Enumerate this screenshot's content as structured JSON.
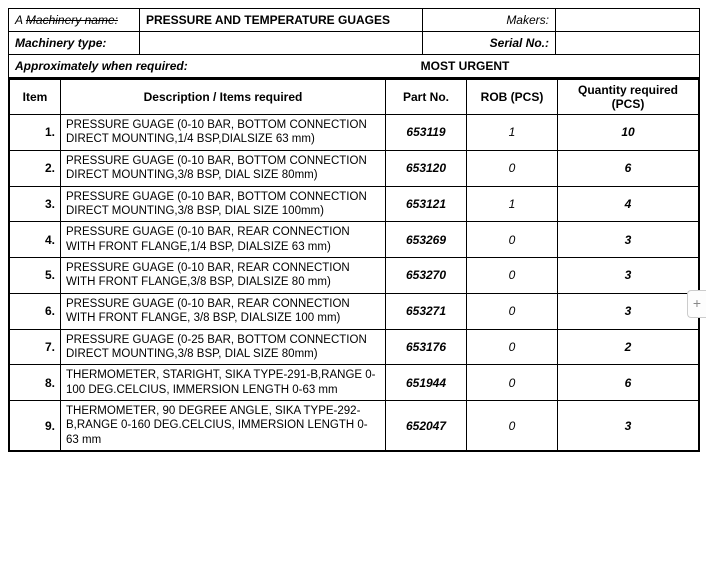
{
  "header": {
    "machinery_name_label_prefix": "A ",
    "machinery_name_label_struck": "Machinery name:",
    "machinery_name_value": "PRESSURE AND TEMPERATURE GUAGES",
    "makers_label": "Makers:",
    "makers_value": "",
    "machinery_type_label": "Machinery type:",
    "machinery_type_value": "",
    "serial_no_label": "Serial No.:",
    "serial_no_value": "",
    "approx_required_label": "Approximately when required:",
    "approx_required_value": "MOST URGENT"
  },
  "columns": {
    "item": "Item",
    "desc": "Description / Items required",
    "part": "Part No.",
    "rob": "ROB (PCS)",
    "qty": "Quantity required (PCS)"
  },
  "rows": [
    {
      "n": "1.",
      "desc": "PRESSURE GUAGE (0-10 BAR, BOTTOM CONNECTION DIRECT MOUNTING,1/4 BSP,DIALSIZE 63 mm)",
      "part": "653119",
      "rob": "1",
      "qty": "10"
    },
    {
      "n": "2.",
      "desc": "PRESSURE GUAGE (0-10 BAR, BOTTOM CONNECTION DIRECT MOUNTING,3/8 BSP, DIAL SIZE 80mm)",
      "part": "653120",
      "rob": "0",
      "qty": "6"
    },
    {
      "n": "3.",
      "desc": "PRESSURE GUAGE (0-10 BAR, BOTTOM CONNECTION DIRECT MOUNTING,3/8 BSP, DIAL SIZE 100mm)",
      "part": "653121",
      "rob": "1",
      "qty": "4"
    },
    {
      "n": "4.",
      "desc": "PRESSURE GUAGE (0-10 BAR, REAR CONNECTION WITH FRONT FLANGE,1/4 BSP, DIALSIZE 63 mm)",
      "part": "653269",
      "rob": "0",
      "qty": "3"
    },
    {
      "n": "5.",
      "desc": "PRESSURE GUAGE (0-10 BAR, REAR CONNECTION WITH FRONT FLANGE,3/8 BSP, DIALSIZE 80 mm)",
      "part": "653270",
      "rob": "0",
      "qty": "3"
    },
    {
      "n": "6.",
      "desc": "PRESSURE GUAGE (0-10 BAR, REAR CONNECTION WITH FRONT FLANGE, 3/8 BSP, DIALSIZE 100 mm)",
      "part": "653271",
      "rob": "0",
      "qty": "3"
    },
    {
      "n": "7.",
      "desc": "PRESSURE GUAGE (0-25 BAR, BOTTOM CONNECTION DIRECT MOUNTING,3/8 BSP, DIAL SIZE 80mm)",
      "part": "653176",
      "rob": "0",
      "qty": "2"
    },
    {
      "n": "8.",
      "desc": "THERMOMETER, STARIGHT, SIKA TYPE-291-B,RANGE 0-100 DEG.CELCIUS, IMMERSION LENGTH 0-63 mm",
      "part": "651944",
      "rob": "0",
      "qty": "6"
    },
    {
      "n": "9.",
      "desc": "THERMOMETER, 90 DEGREE ANGLE, SIKA TYPE-292-B,RANGE 0-160 DEG.CELCIUS, IMMERSION LENGTH 0-63 mm",
      "part": "652047",
      "rob": "0",
      "qty": "3"
    }
  ],
  "sidebar": {
    "plus": "+"
  }
}
